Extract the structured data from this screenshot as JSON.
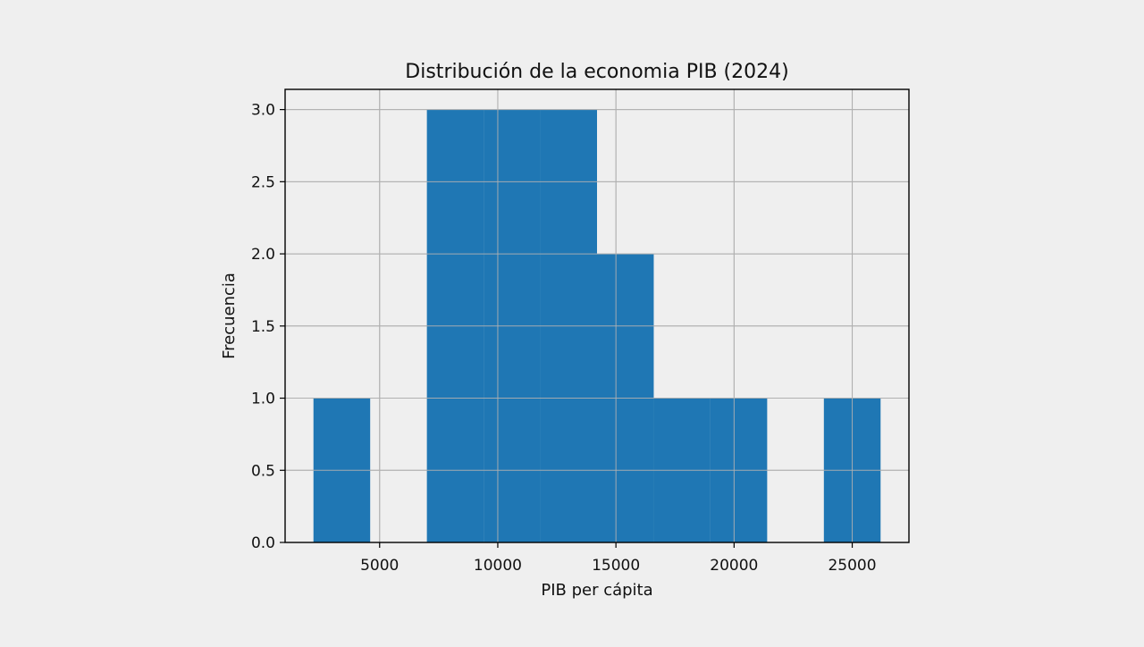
{
  "chart_data": {
    "type": "bar",
    "subtype": "histogram",
    "title": "Distribución de la economia PIB (2024)",
    "xlabel": "PIB per cápita",
    "ylabel": "Frecuencia",
    "xlim": [
      1000,
      27400
    ],
    "ylim": [
      0,
      3.14
    ],
    "x_ticks": [
      5000,
      10000,
      15000,
      20000,
      25000
    ],
    "y_ticks": [
      0.0,
      0.5,
      1.0,
      1.5,
      2.0,
      2.5,
      3.0
    ],
    "x_tick_labels": [
      "5000",
      "10000",
      "15000",
      "20000",
      "25000"
    ],
    "y_tick_labels": [
      "0.0",
      "0.5",
      "1.0",
      "1.5",
      "2.0",
      "2.5",
      "3.0"
    ],
    "bins": [
      {
        "start": 2200,
        "end": 4600,
        "count": 1
      },
      {
        "start": 4600,
        "end": 7000,
        "count": 0
      },
      {
        "start": 7000,
        "end": 9400,
        "count": 3
      },
      {
        "start": 9400,
        "end": 11800,
        "count": 3
      },
      {
        "start": 11800,
        "end": 14200,
        "count": 3
      },
      {
        "start": 14200,
        "end": 16600,
        "count": 2
      },
      {
        "start": 16600,
        "end": 19000,
        "count": 1
      },
      {
        "start": 19000,
        "end": 21400,
        "count": 1
      },
      {
        "start": 21400,
        "end": 23800,
        "count": 0
      },
      {
        "start": 23800,
        "end": 26200,
        "count": 1
      }
    ],
    "grid": true,
    "bar_color": "#1f77b4",
    "grid_color": "#b0b0b0",
    "background_color": "#efefef"
  }
}
